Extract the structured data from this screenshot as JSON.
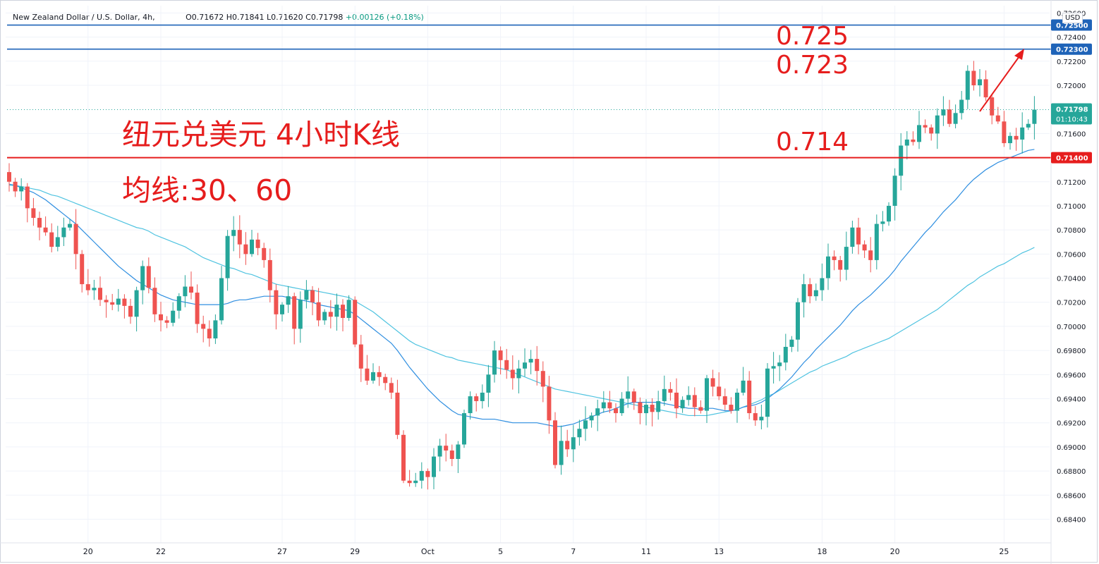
{
  "header": {
    "symbol": "New Zealand Dollar / U.S. Dollar, 4h,",
    "open": "O0.71672",
    "high": "H0.71841",
    "low": "L0.71620",
    "close": "C0.71798",
    "change": "+0.00126 (+0.18%)",
    "currency": "USD"
  },
  "annotations": {
    "title_line1": "纽元兑美元 4小时K线",
    "title_line2": "均线:30、60",
    "level_725": "0.725",
    "level_723": "0.723",
    "level_714": "0.714"
  },
  "colors": {
    "up": "#26a69a",
    "down": "#ef5350",
    "ma30": "#2e8ee0",
    "ma60": "#4fc3e0",
    "blue_line": "#1e63b8",
    "red_line": "#e61d1d",
    "annotation": "#e61d1d",
    "grid": "#f0f3fa",
    "axis_text": "#131722"
  },
  "chart_data": {
    "type": "candlestick",
    "title": "纽元兑美元 4小时K线",
    "ylim": [
      0.6828,
      0.7262
    ],
    "y_ticks": [
      "0.72600",
      "0.72400",
      "0.72200",
      "0.72000",
      "0.71600",
      "0.71200",
      "0.71000",
      "0.70800",
      "0.70600",
      "0.70400",
      "0.70200",
      "0.70000",
      "0.69800",
      "0.69600",
      "0.69400",
      "0.69200",
      "0.69000",
      "0.68800",
      "0.68600",
      "0.68400"
    ],
    "x_ticks": [
      {
        "label": "20",
        "bar": 13
      },
      {
        "label": "22",
        "bar": 25
      },
      {
        "label": "27",
        "bar": 45
      },
      {
        "label": "29",
        "bar": 57
      },
      {
        "label": "Oct",
        "bar": 69
      },
      {
        "label": "5",
        "bar": 81
      },
      {
        "label": "7",
        "bar": 93
      },
      {
        "label": "11",
        "bar": 105
      },
      {
        "label": "13",
        "bar": 117
      },
      {
        "label": "18",
        "bar": 134
      },
      {
        "label": "20",
        "bar": 146
      },
      {
        "label": "25",
        "bar": 164
      }
    ],
    "horizontal_lines": [
      {
        "value": 0.725,
        "label": "0.72500",
        "color": "#1e63b8"
      },
      {
        "value": 0.723,
        "label": "0.72300",
        "color": "#1e63b8"
      },
      {
        "value": 0.714,
        "label": "0.71400",
        "color": "#e61d1d"
      }
    ],
    "last_price": {
      "value": 0.71798,
      "label": "0.71798",
      "countdown": "01:10:43"
    },
    "closes": [
      0.712,
      0.7112,
      0.7116,
      0.7098,
      0.709,
      0.7082,
      0.7078,
      0.7066,
      0.7074,
      0.7082,
      0.7085,
      0.706,
      0.7035,
      0.703,
      0.7032,
      0.7022,
      0.702,
      0.7018,
      0.7023,
      0.7017,
      0.7008,
      0.703,
      0.705,
      0.7032,
      0.701,
      0.7005,
      0.7003,
      0.7013,
      0.7025,
      0.7033,
      0.7028,
      0.7002,
      0.6998,
      0.699,
      0.7005,
      0.704,
      0.7075,
      0.708,
      0.7068,
      0.706,
      0.7072,
      0.7065,
      0.7055,
      0.703,
      0.701,
      0.7018,
      0.7025,
      0.6998,
      0.7022,
      0.703,
      0.702,
      0.7005,
      0.7012,
      0.7008,
      0.7018,
      0.7007,
      0.7022,
      0.6985,
      0.6965,
      0.6955,
      0.6962,
      0.6958,
      0.6953,
      0.6945,
      0.691,
      0.6872,
      0.687,
      0.6872,
      0.688,
      0.6875,
      0.6892,
      0.6901,
      0.6897,
      0.689,
      0.6902,
      0.6928,
      0.6942,
      0.6938,
      0.6945,
      0.696,
      0.698,
      0.6972,
      0.6964,
      0.6957,
      0.6965,
      0.697,
      0.6973,
      0.6963,
      0.695,
      0.6922,
      0.6885,
      0.6905,
      0.6898,
      0.6908,
      0.6915,
      0.6922,
      0.6926,
      0.6932,
      0.6937,
      0.6932,
      0.6928,
      0.694,
      0.6946,
      0.6937,
      0.6928,
      0.6935,
      0.6929,
      0.6938,
      0.6948,
      0.6945,
      0.6932,
      0.6939,
      0.6943,
      0.6933,
      0.693,
      0.6957,
      0.695,
      0.6942,
      0.6935,
      0.693,
      0.6945,
      0.6955,
      0.6928,
      0.6922,
      0.6925,
      0.6965,
      0.6967,
      0.697,
      0.6983,
      0.6989,
      0.702,
      0.7035,
      0.7025,
      0.703,
      0.704,
      0.7058,
      0.7055,
      0.7047,
      0.7066,
      0.7082,
      0.7068,
      0.7063,
      0.7055,
      0.7085,
      0.7087,
      0.71,
      0.7125,
      0.715,
      0.7155,
      0.7153,
      0.7167,
      0.7165,
      0.716,
      0.7175,
      0.718,
      0.7168,
      0.7177,
      0.7188,
      0.7212,
      0.72,
      0.7205,
      0.719,
      0.7175,
      0.717,
      0.7152,
      0.7158,
      0.7155,
      0.7165,
      0.7168,
      0.71798
    ],
    "ma30": [
      0.7118,
      0.7117,
      0.7115,
      0.7113,
      0.7111,
      0.7108,
      0.7105,
      0.7101,
      0.7097,
      0.7093,
      0.7089,
      0.7085,
      0.708,
      0.7075,
      0.707,
      0.7065,
      0.706,
      0.7055,
      0.705,
      0.7046,
      0.7042,
      0.7038,
      0.7035,
      0.7032,
      0.7029,
      0.7026,
      0.7024,
      0.7022,
      0.7021,
      0.702,
      0.7019,
      0.7018,
      0.7018,
      0.7018,
      0.7018,
      0.7018,
      0.7019,
      0.7021,
      0.7022,
      0.7022,
      0.7023,
      0.7024,
      0.7025,
      0.7025,
      0.7025,
      0.7025,
      0.7024,
      0.7023,
      0.7022,
      0.7021,
      0.702,
      0.7018,
      0.7017,
      0.7016,
      0.7015,
      0.7014,
      0.7013,
      0.701,
      0.7006,
      0.7002,
      0.6998,
      0.6994,
      0.699,
      0.6986,
      0.698,
      0.6973,
      0.6966,
      0.696,
      0.6954,
      0.6948,
      0.6943,
      0.6938,
      0.6934,
      0.693,
      0.6927,
      0.6926,
      0.6925,
      0.6924,
      0.6923,
      0.6923,
      0.6923,
      0.6922,
      0.6921,
      0.692,
      0.692,
      0.692,
      0.692,
      0.692,
      0.6919,
      0.6918,
      0.6917,
      0.6917,
      0.6918,
      0.6919,
      0.6921,
      0.6923,
      0.6925,
      0.6927,
      0.6929,
      0.693,
      0.6932,
      0.6934,
      0.6936,
      0.6937,
      0.6937,
      0.6937,
      0.6937,
      0.6937,
      0.6936,
      0.6935,
      0.6934,
      0.6933,
      0.6932,
      0.6932,
      0.6931,
      0.6932,
      0.6932,
      0.6931,
      0.693,
      0.693,
      0.6931,
      0.6933,
      0.6934,
      0.6935,
      0.6937,
      0.694,
      0.6944,
      0.6948,
      0.6953,
      0.6958,
      0.6964,
      0.697,
      0.6975,
      0.6981,
      0.6986,
      0.6991,
      0.6996,
      0.7001,
      0.7007,
      0.7013,
      0.7018,
      0.7022,
      0.7026,
      0.7031,
      0.7036,
      0.7041,
      0.7047,
      0.7054,
      0.706,
      0.7066,
      0.7072,
      0.7078,
      0.7083,
      0.7089,
      0.7095,
      0.71,
      0.7105,
      0.7111,
      0.7117,
      0.7122,
      0.7126,
      0.713,
      0.7133,
      0.7136,
      0.7138,
      0.714,
      0.7142,
      0.7144,
      0.7146,
      0.71468
    ],
    "ma60": [
      0.7117,
      0.7117,
      0.7116,
      0.7115,
      0.7114,
      0.7113,
      0.7111,
      0.7109,
      0.7108,
      0.7106,
      0.7104,
      0.7102,
      0.71,
      0.7098,
      0.7096,
      0.7094,
      0.7092,
      0.709,
      0.7088,
      0.7086,
      0.7084,
      0.7082,
      0.7081,
      0.7079,
      0.7076,
      0.7074,
      0.7072,
      0.707,
      0.7068,
      0.7066,
      0.7063,
      0.706,
      0.7057,
      0.7055,
      0.7053,
      0.7051,
      0.7049,
      0.7048,
      0.7046,
      0.7044,
      0.7043,
      0.7041,
      0.7039,
      0.7037,
      0.7035,
      0.7034,
      0.7033,
      0.7032,
      0.7031,
      0.703,
      0.703,
      0.7029,
      0.7028,
      0.7027,
      0.7026,
      0.7025,
      0.7024,
      0.7021,
      0.7018,
      0.7015,
      0.7012,
      0.7008,
      0.7004,
      0.7,
      0.6996,
      0.6992,
      0.6988,
      0.6985,
      0.6983,
      0.6981,
      0.6979,
      0.6977,
      0.6975,
      0.6974,
      0.6972,
      0.6971,
      0.697,
      0.6969,
      0.6968,
      0.6967,
      0.6966,
      0.6965,
      0.6964,
      0.6962,
      0.696,
      0.6958,
      0.6956,
      0.6954,
      0.6952,
      0.695,
      0.6948,
      0.6947,
      0.6946,
      0.6945,
      0.6944,
      0.6943,
      0.6942,
      0.6941,
      0.694,
      0.6939,
      0.6938,
      0.6937,
      0.6936,
      0.6935,
      0.6934,
      0.6933,
      0.6932,
      0.6931,
      0.693,
      0.6929,
      0.6928,
      0.6927,
      0.6926,
      0.6926,
      0.6926,
      0.6926,
      0.6927,
      0.6928,
      0.6929,
      0.693,
      0.6931,
      0.6933,
      0.6935,
      0.6937,
      0.6939,
      0.6942,
      0.6944,
      0.6947,
      0.695,
      0.6953,
      0.6956,
      0.6959,
      0.6962,
      0.6964,
      0.6967,
      0.6969,
      0.6971,
      0.6973,
      0.6975,
      0.6978,
      0.698,
      0.6982,
      0.6984,
      0.6986,
      0.6988,
      0.699,
      0.6993,
      0.6996,
      0.6999,
      0.7002,
      0.7005,
      0.7008,
      0.7011,
      0.7014,
      0.7018,
      0.7022,
      0.7026,
      0.703,
      0.7034,
      0.7037,
      0.7041,
      0.7044,
      0.7047,
      0.705,
      0.7052,
      0.7055,
      0.7058,
      0.7061,
      0.7063,
      0.70655
    ]
  }
}
